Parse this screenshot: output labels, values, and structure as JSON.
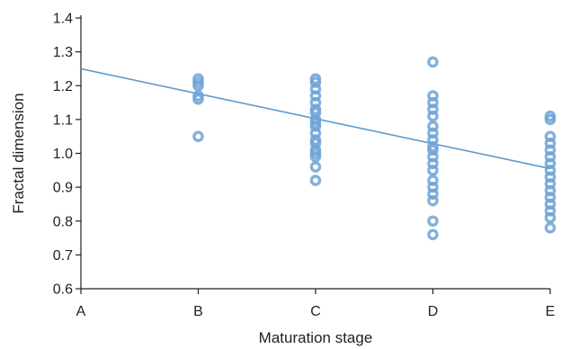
{
  "chart_data": {
    "type": "scatter",
    "title": "",
    "xlabel": "Maturation stage",
    "ylabel": "Fractal dimension",
    "categories": [
      "A",
      "B",
      "C",
      "D",
      "E"
    ],
    "ylim": [
      0.6,
      1.4
    ],
    "yticks": [
      "0.6",
      "0.7",
      "0.8",
      "0.9",
      "1.0",
      "1.1",
      "1.2",
      "1.3",
      "1.4"
    ],
    "grid": false,
    "legend": "none",
    "colors": {
      "points": "#6fa3d6",
      "trend": "#5b9bd0",
      "axis": "#222222"
    },
    "series": [
      {
        "points": [
          {
            "x": "B",
            "y": 1.22
          },
          {
            "x": "B",
            "y": 1.21
          },
          {
            "x": "B",
            "y": 1.2
          },
          {
            "x": "B",
            "y": 1.17
          },
          {
            "x": "B",
            "y": 1.16
          },
          {
            "x": "B",
            "y": 1.05
          },
          {
            "x": "C",
            "y": 1.22
          },
          {
            "x": "C",
            "y": 1.21
          },
          {
            "x": "C",
            "y": 1.19
          },
          {
            "x": "C",
            "y": 1.17
          },
          {
            "x": "C",
            "y": 1.15
          },
          {
            "x": "C",
            "y": 1.13
          },
          {
            "x": "C",
            "y": 1.12
          },
          {
            "x": "C",
            "y": 1.1
          },
          {
            "x": "C",
            "y": 1.09
          },
          {
            "x": "C",
            "y": 1.08
          },
          {
            "x": "C",
            "y": 1.06
          },
          {
            "x": "C",
            "y": 1.04
          },
          {
            "x": "C",
            "y": 1.03
          },
          {
            "x": "C",
            "y": 1.01
          },
          {
            "x": "C",
            "y": 1.0
          },
          {
            "x": "C",
            "y": 0.99
          },
          {
            "x": "C",
            "y": 0.96
          },
          {
            "x": "C",
            "y": 0.92
          },
          {
            "x": "D",
            "y": 1.27
          },
          {
            "x": "D",
            "y": 1.17
          },
          {
            "x": "D",
            "y": 1.15
          },
          {
            "x": "D",
            "y": 1.13
          },
          {
            "x": "D",
            "y": 1.11
          },
          {
            "x": "D",
            "y": 1.08
          },
          {
            "x": "D",
            "y": 1.06
          },
          {
            "x": "D",
            "y": 1.04
          },
          {
            "x": "D",
            "y": 1.02
          },
          {
            "x": "D",
            "y": 1.01
          },
          {
            "x": "D",
            "y": 0.99
          },
          {
            "x": "D",
            "y": 0.97
          },
          {
            "x": "D",
            "y": 0.95
          },
          {
            "x": "D",
            "y": 0.92
          },
          {
            "x": "D",
            "y": 0.9
          },
          {
            "x": "D",
            "y": 0.88
          },
          {
            "x": "D",
            "y": 0.86
          },
          {
            "x": "D",
            "y": 0.8
          },
          {
            "x": "D",
            "y": 0.76
          },
          {
            "x": "E",
            "y": 1.11
          },
          {
            "x": "E",
            "y": 1.1
          },
          {
            "x": "E",
            "y": 1.05
          },
          {
            "x": "E",
            "y": 1.03
          },
          {
            "x": "E",
            "y": 1.01
          },
          {
            "x": "E",
            "y": 0.99
          },
          {
            "x": "E",
            "y": 0.97
          },
          {
            "x": "E",
            "y": 0.95
          },
          {
            "x": "E",
            "y": 0.93
          },
          {
            "x": "E",
            "y": 0.91
          },
          {
            "x": "E",
            "y": 0.89
          },
          {
            "x": "E",
            "y": 0.87
          },
          {
            "x": "E",
            "y": 0.85
          },
          {
            "x": "E",
            "y": 0.83
          },
          {
            "x": "E",
            "y": 0.81
          },
          {
            "x": "E",
            "y": 0.78
          }
        ]
      }
    ],
    "trendline": {
      "from": {
        "x": "A",
        "y": 1.25
      },
      "to": {
        "x": "E",
        "y": 0.955
      }
    }
  }
}
